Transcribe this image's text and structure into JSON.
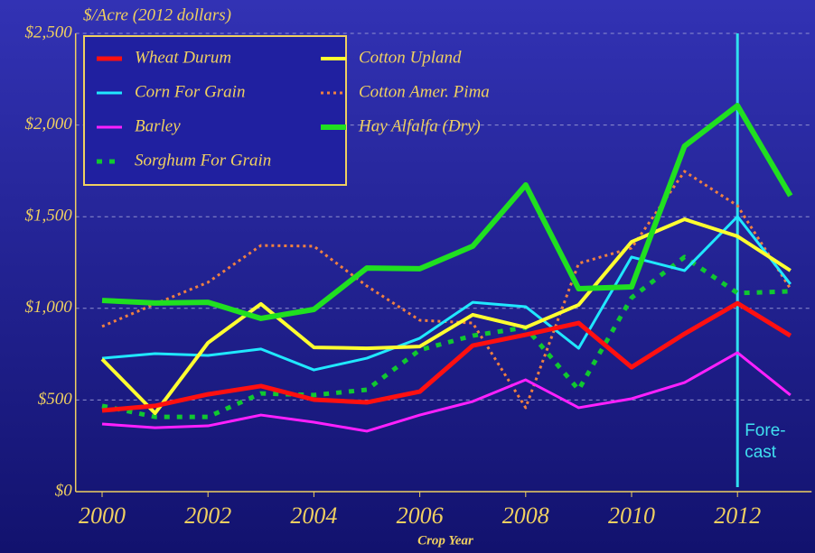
{
  "chart_data": {
    "type": "line",
    "y_axis_label": "$/Acre (2012 dollars)",
    "x_axis_label": "Crop Year",
    "x": [
      2000,
      2001,
      2002,
      2003,
      2004,
      2005,
      2006,
      2007,
      2008,
      2009,
      2010,
      2011,
      2012,
      2013
    ],
    "xlim": [
      1999.5,
      2013.4
    ],
    "xticks": [
      2000,
      2002,
      2004,
      2006,
      2008,
      2010,
      2012
    ],
    "ylim": [
      0,
      2500
    ],
    "yticks": [
      {
        "value": 0,
        "label": "$0"
      },
      {
        "value": 500,
        "label": "$500"
      },
      {
        "value": 1000,
        "label": "$1,000"
      },
      {
        "value": 1500,
        "label": "$1,500"
      },
      {
        "value": 2000,
        "label": "$2,000"
      },
      {
        "value": 2500,
        "label": "$2,500"
      }
    ],
    "grid": true,
    "series": [
      {
        "name": "Wheat Durum",
        "color": "#ff1010",
        "width": 5,
        "style": "solid",
        "values": [
          443,
          468,
          531,
          576,
          502,
          487,
          546,
          797,
          856,
          920,
          679,
          861,
          1028,
          851
        ]
      },
      {
        "name": "Cotton Upland",
        "color": "#ffff30",
        "width": 4,
        "style": "solid",
        "values": [
          723,
          428,
          812,
          1024,
          787,
          782,
          792,
          965,
          896,
          1019,
          1363,
          1486,
          1393,
          1206
        ]
      },
      {
        "name": "Corn For Grain",
        "color": "#20e8ff",
        "width": 3,
        "style": "solid",
        "values": [
          728,
          753,
          743,
          778,
          664,
          728,
          837,
          1033,
          1009,
          782,
          1280,
          1206,
          1501,
          1132
        ]
      },
      {
        "name": "Cotton Amer. Pima",
        "color": "#f08040",
        "width": 3,
        "style": "dotted",
        "values": [
          901,
          1024,
          1142,
          1343,
          1339,
          1122,
          935,
          920,
          458,
          1245,
          1329,
          1747,
          1560,
          1107
        ]
      },
      {
        "name": "Barley",
        "color": "#ff20ff",
        "width": 3,
        "style": "solid",
        "values": [
          369,
          349,
          359,
          418,
          379,
          330,
          418,
          492,
          610,
          458,
          507,
          595,
          758,
          527
        ]
      },
      {
        "name": "Hay Alfalfa (Dry)",
        "color": "#20e020",
        "width": 6,
        "style": "solid",
        "values": [
          1043,
          1029,
          1033,
          945,
          994,
          1220,
          1216,
          1339,
          1673,
          1107,
          1117,
          1885,
          2106,
          1614
        ]
      },
      {
        "name": "Sorghum For Grain",
        "color": "#10c830",
        "width": 5,
        "style": "dotted",
        "values": [
          468,
          408,
          408,
          536,
          527,
          556,
          773,
          851,
          896,
          556,
          1058,
          1280,
          1083,
          1093
        ]
      }
    ],
    "annotation": {
      "x": 2012,
      "lines": [
        "Fore-",
        "cast"
      ],
      "color": "#30e0f0"
    }
  }
}
